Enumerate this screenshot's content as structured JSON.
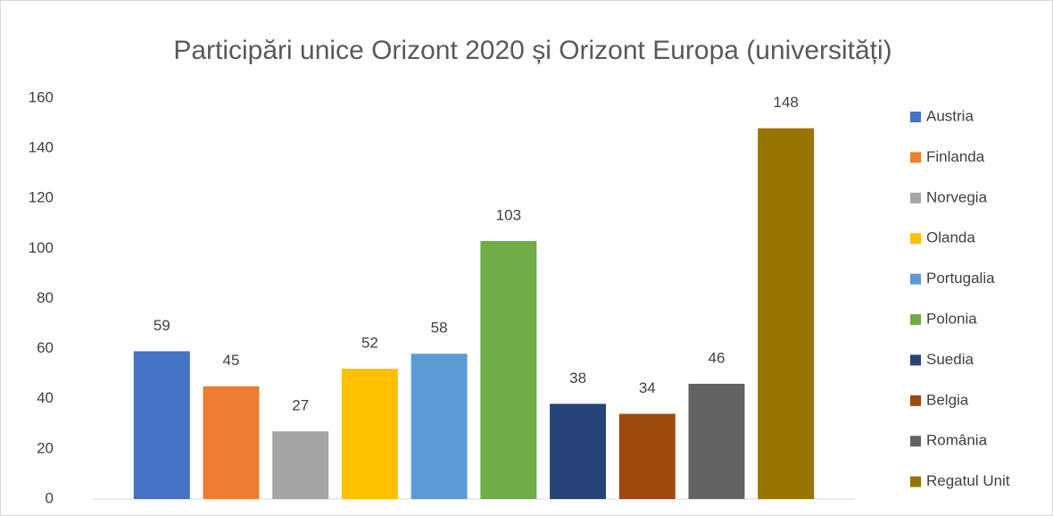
{
  "chart_data": {
    "type": "bar",
    "title": "Participări unice Orizont 2020 și Orizont Europa (universități)",
    "categories": [
      null
    ],
    "series": [
      {
        "name": "Austria",
        "color": "#4472c4",
        "values": [
          59
        ]
      },
      {
        "name": "Finlanda",
        "color": "#ed7d31",
        "values": [
          45
        ]
      },
      {
        "name": "Norvegia",
        "color": "#a5a5a5",
        "values": [
          27
        ]
      },
      {
        "name": "Olanda",
        "color": "#ffc000",
        "values": [
          52
        ]
      },
      {
        "name": "Portugalia",
        "color": "#5b9bd5",
        "values": [
          58
        ]
      },
      {
        "name": "Polonia",
        "color": "#70ad47",
        "values": [
          103
        ]
      },
      {
        "name": "Suedia",
        "color": "#264478",
        "values": [
          38
        ]
      },
      {
        "name": "Belgia",
        "color": "#9e480e",
        "values": [
          34
        ]
      },
      {
        "name": "România",
        "color": "#636363",
        "values": [
          46
        ]
      },
      {
        "name": "Regatul Unit",
        "color": "#997300",
        "values": [
          148
        ]
      }
    ],
    "ylim": [
      0,
      160
    ],
    "yticks": [
      0,
      20,
      40,
      60,
      80,
      100,
      120,
      140,
      160
    ],
    "grid": false,
    "legend": "right"
  }
}
